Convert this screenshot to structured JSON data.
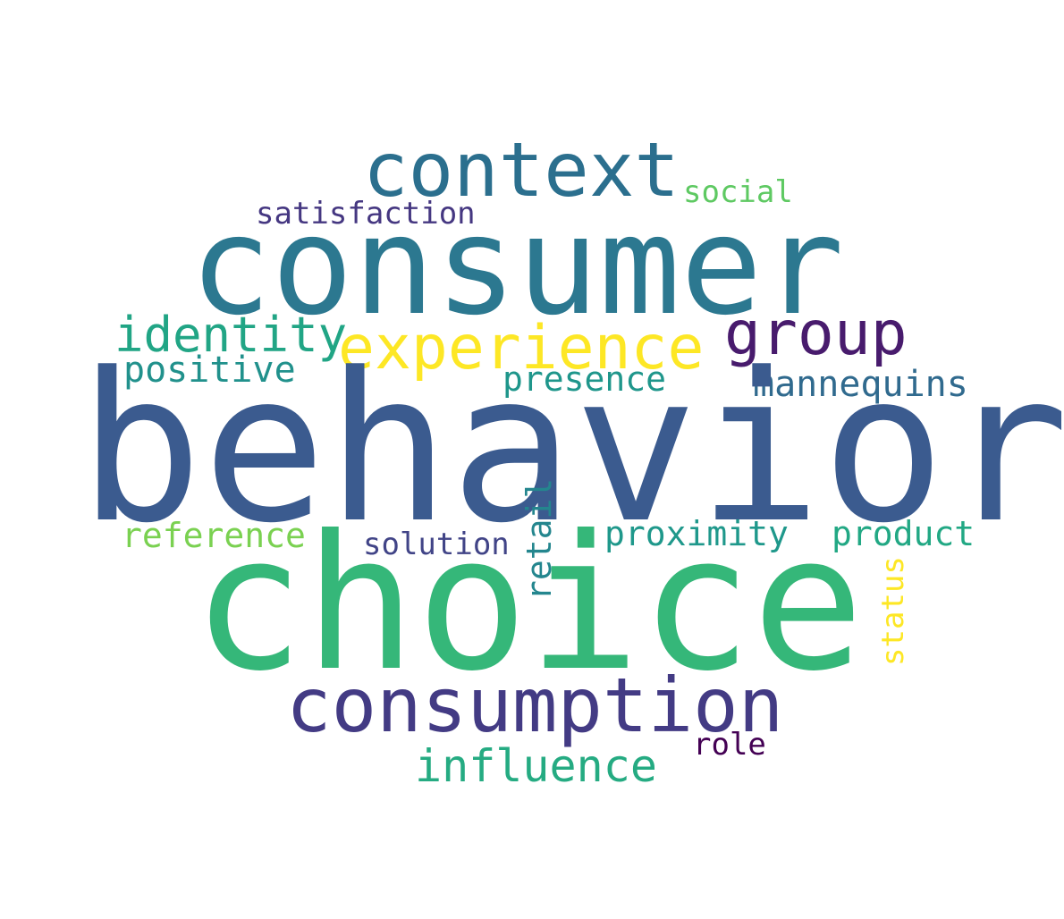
{
  "words": {
    "behavior": {
      "text": "behavior",
      "color": "#3b5b8f"
    },
    "choice": {
      "text": "choice",
      "color": "#35b779"
    },
    "consumer": {
      "text": "consumer",
      "color": "#2c7890"
    },
    "consumption": {
      "text": "consumption",
      "color": "#433b84"
    },
    "context": {
      "text": "context",
      "color": "#2b6f8e"
    },
    "experience": {
      "text": "experience",
      "color": "#fde725"
    },
    "group": {
      "text": "group",
      "color": "#481b6d"
    },
    "identity": {
      "text": "identity",
      "color": "#21a585"
    },
    "influence": {
      "text": "influence",
      "color": "#25ab82"
    },
    "positive": {
      "text": "positive",
      "color": "#21918c"
    },
    "mannequins": {
      "text": "mannequins",
      "color": "#306a8e"
    },
    "presence": {
      "text": "presence",
      "color": "#1f968b"
    },
    "reference": {
      "text": "reference",
      "color": "#7ad151"
    },
    "proximity": {
      "text": "proximity",
      "color": "#1f988b"
    },
    "product": {
      "text": "product",
      "color": "#22a884"
    },
    "satisfaction": {
      "text": "satisfaction",
      "color": "#453781"
    },
    "social": {
      "text": "social",
      "color": "#5ec962"
    },
    "solution": {
      "text": "solution",
      "color": "#414487"
    },
    "role": {
      "text": "role",
      "color": "#440154"
    },
    "retail": {
      "text": "retail",
      "color": "#24868e"
    },
    "status": {
      "text": "status",
      "color": "#fde725"
    }
  }
}
